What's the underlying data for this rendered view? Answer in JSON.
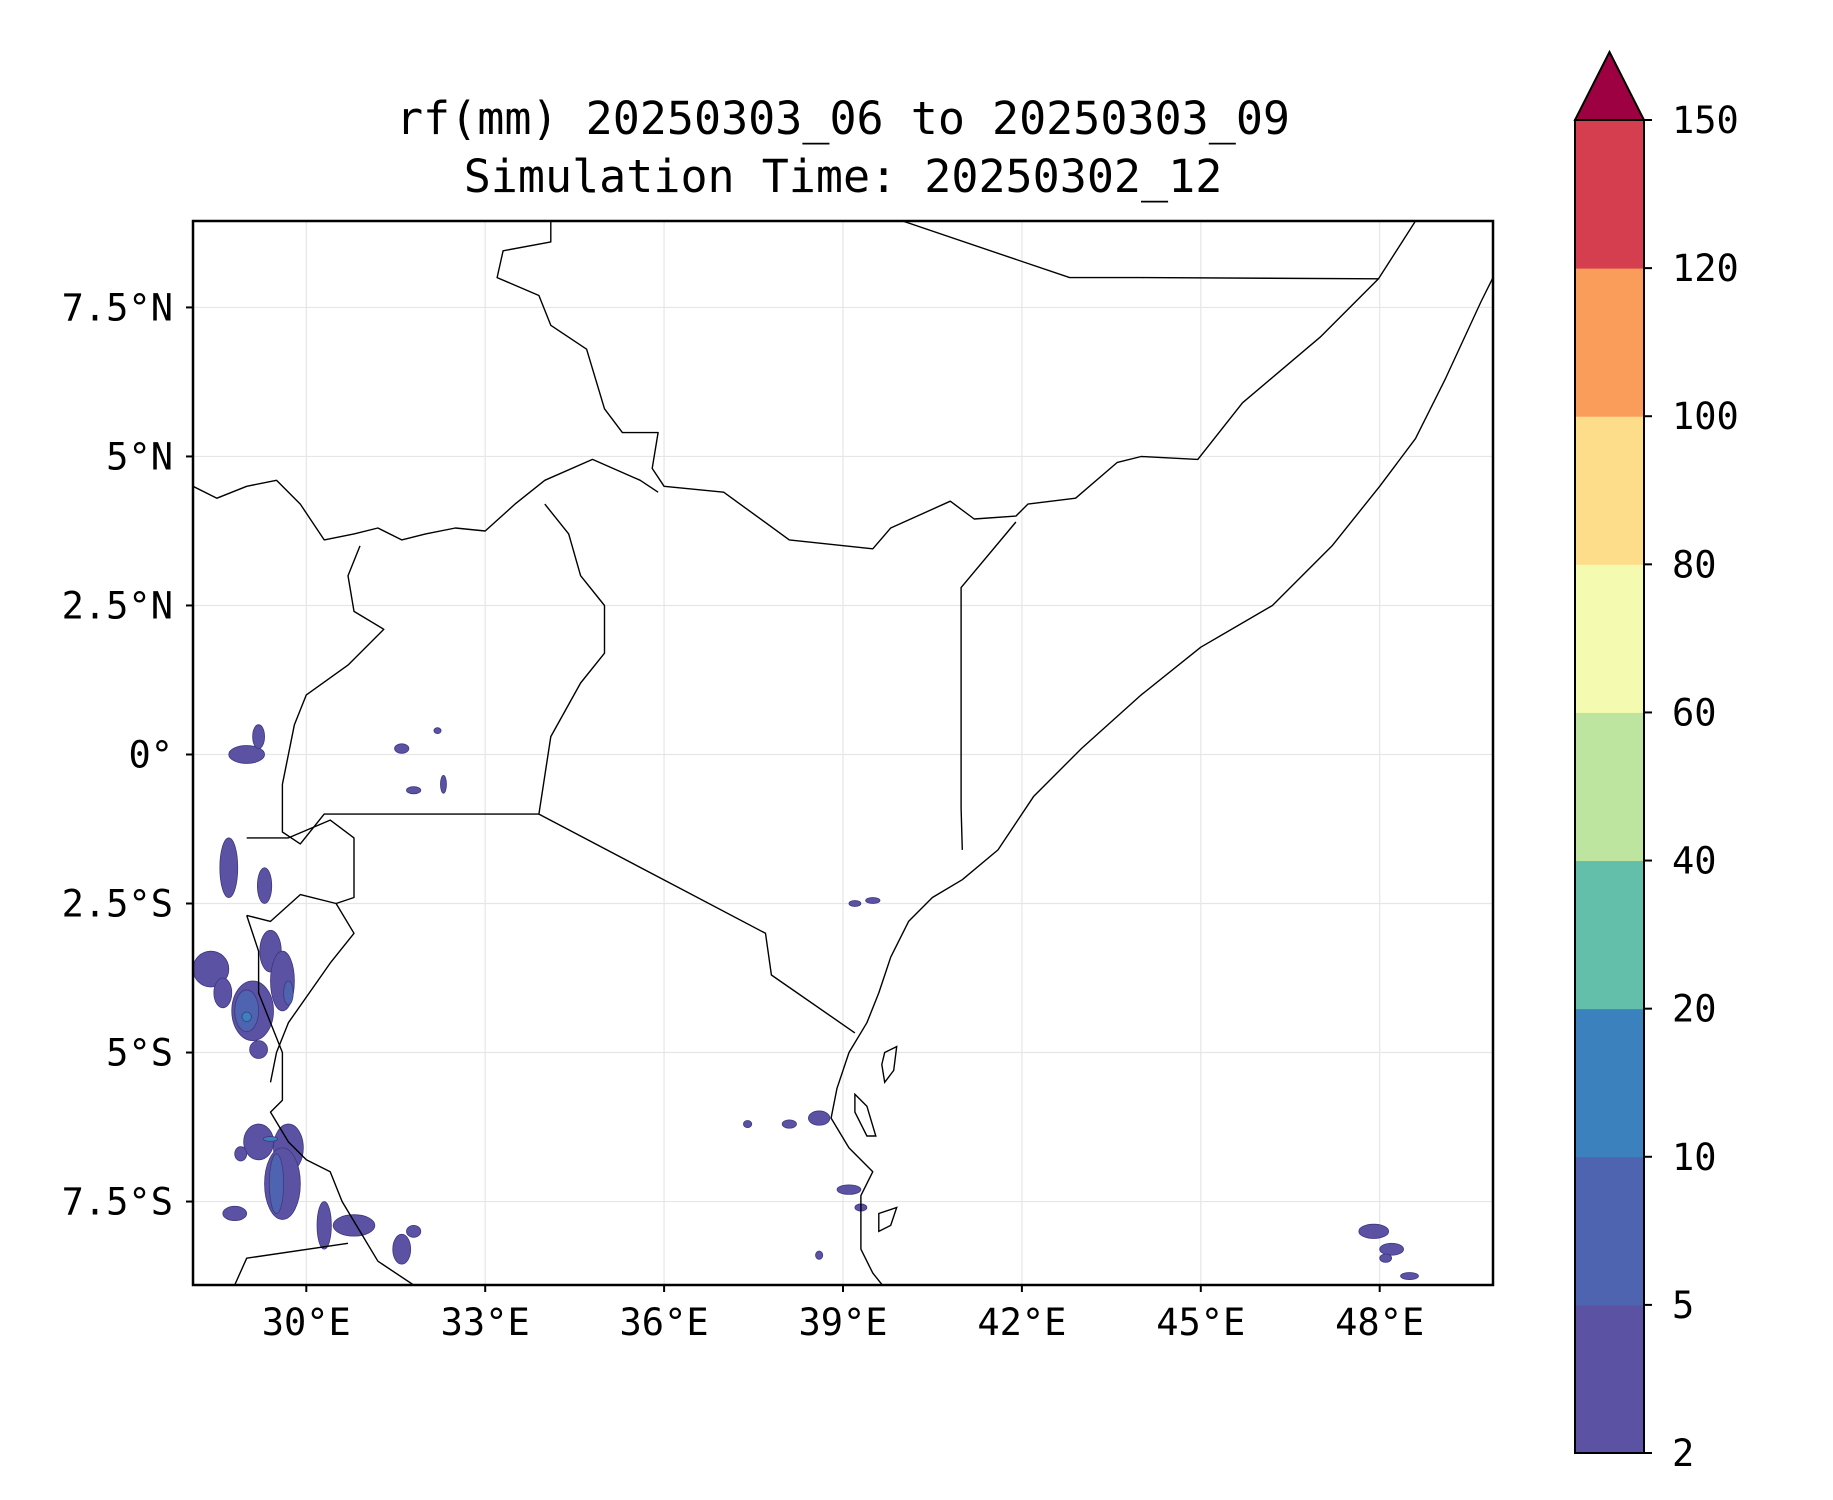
{
  "title": {
    "line1": "rf(mm) 20250303_06 to 20250303_09",
    "line2": "Simulation Time: 20250302_12"
  },
  "map": {
    "extent": {
      "lon": [
        28.1,
        49.9
      ],
      "lat": [
        -8.9,
        8.95
      ]
    },
    "x_ticks": [
      {
        "lon": 30,
        "label": "30°E"
      },
      {
        "lon": 33,
        "label": "33°E"
      },
      {
        "lon": 36,
        "label": "36°E"
      },
      {
        "lon": 39,
        "label": "39°E"
      },
      {
        "lon": 42,
        "label": "42°E"
      },
      {
        "lon": 45,
        "label": "45°E"
      },
      {
        "lon": 48,
        "label": "48°E"
      }
    ],
    "y_ticks": [
      {
        "lat": 7.5,
        "label": "7.5°N"
      },
      {
        "lat": 5,
        "label": "5°N"
      },
      {
        "lat": 2.5,
        "label": "2.5°N"
      },
      {
        "lat": 0,
        "label": "0°"
      },
      {
        "lat": -2.5,
        "label": "2.5°S"
      },
      {
        "lat": -5,
        "label": "5°S"
      },
      {
        "lat": -7.5,
        "label": "7.5°S"
      }
    ],
    "gridlines": true,
    "rain_patches": [
      {
        "lon": 29.0,
        "lat": 0.0,
        "rx": 0.3,
        "ry": 0.15,
        "level": 1
      },
      {
        "lon": 29.2,
        "lat": 0.3,
        "rx": 0.1,
        "ry": 0.2,
        "level": 1
      },
      {
        "lon": 28.7,
        "lat": -1.9,
        "rx": 0.15,
        "ry": 0.5,
        "level": 1
      },
      {
        "lon": 29.3,
        "lat": -2.2,
        "rx": 0.12,
        "ry": 0.3,
        "level": 1
      },
      {
        "lon": 29.4,
        "lat": -3.3,
        "rx": 0.18,
        "ry": 0.35,
        "level": 1
      },
      {
        "lon": 29.6,
        "lat": -3.8,
        "rx": 0.2,
        "ry": 0.5,
        "level": 1
      },
      {
        "lon": 29.7,
        "lat": -4.0,
        "rx": 0.08,
        "ry": 0.2,
        "level": 2
      },
      {
        "lon": 28.4,
        "lat": -3.6,
        "rx": 0.3,
        "ry": 0.3,
        "level": 1
      },
      {
        "lon": 28.6,
        "lat": -4.0,
        "rx": 0.15,
        "ry": 0.25,
        "level": 1
      },
      {
        "lon": 29.1,
        "lat": -4.3,
        "rx": 0.35,
        "ry": 0.5,
        "level": 1
      },
      {
        "lon": 29.0,
        "lat": -4.3,
        "rx": 0.2,
        "ry": 0.35,
        "level": 2
      },
      {
        "lon": 29.0,
        "lat": -4.4,
        "rx": 0.08,
        "ry": 0.08,
        "level": 3
      },
      {
        "lon": 29.2,
        "lat": -4.95,
        "rx": 0.15,
        "ry": 0.15,
        "level": 1
      },
      {
        "lon": 29.2,
        "lat": -6.5,
        "rx": 0.25,
        "ry": 0.3,
        "level": 1
      },
      {
        "lon": 29.7,
        "lat": -6.6,
        "rx": 0.25,
        "ry": 0.4,
        "level": 1
      },
      {
        "lon": 29.6,
        "lat": -7.2,
        "rx": 0.3,
        "ry": 0.6,
        "level": 1
      },
      {
        "lon": 29.5,
        "lat": -7.2,
        "rx": 0.12,
        "ry": 0.5,
        "level": 2
      },
      {
        "lon": 29.4,
        "lat": -6.45,
        "rx": 0.12,
        "ry": 0.04,
        "level": 3
      },
      {
        "lon": 28.9,
        "lat": -6.7,
        "rx": 0.1,
        "ry": 0.12,
        "level": 1
      },
      {
        "lon": 28.8,
        "lat": -7.7,
        "rx": 0.2,
        "ry": 0.12,
        "level": 1
      },
      {
        "lon": 30.3,
        "lat": -7.9,
        "rx": 0.12,
        "ry": 0.4,
        "level": 1
      },
      {
        "lon": 30.8,
        "lat": -7.9,
        "rx": 0.35,
        "ry": 0.18,
        "level": 1
      },
      {
        "lon": 31.6,
        "lat": -8.3,
        "rx": 0.15,
        "ry": 0.25,
        "level": 1
      },
      {
        "lon": 31.8,
        "lat": -8.0,
        "rx": 0.12,
        "ry": 0.1,
        "level": 1
      },
      {
        "lon": 31.6,
        "lat": 0.1,
        "rx": 0.12,
        "ry": 0.08,
        "level": 1
      },
      {
        "lon": 31.8,
        "lat": -0.6,
        "rx": 0.12,
        "ry": 0.06,
        "level": 1
      },
      {
        "lon": 32.3,
        "lat": -0.5,
        "rx": 0.05,
        "ry": 0.15,
        "level": 1
      },
      {
        "lon": 32.2,
        "lat": 0.4,
        "rx": 0.06,
        "ry": 0.05,
        "level": 1
      },
      {
        "lon": 39.2,
        "lat": -2.5,
        "rx": 0.1,
        "ry": 0.05,
        "level": 1
      },
      {
        "lon": 39.5,
        "lat": -2.45,
        "rx": 0.12,
        "ry": 0.05,
        "level": 1
      },
      {
        "lon": 37.4,
        "lat": -6.2,
        "rx": 0.07,
        "ry": 0.06,
        "level": 1
      },
      {
        "lon": 38.1,
        "lat": -6.2,
        "rx": 0.12,
        "ry": 0.07,
        "level": 1
      },
      {
        "lon": 38.6,
        "lat": -6.1,
        "rx": 0.18,
        "ry": 0.12,
        "level": 1
      },
      {
        "lon": 39.1,
        "lat": -7.3,
        "rx": 0.2,
        "ry": 0.08,
        "level": 1
      },
      {
        "lon": 39.3,
        "lat": -7.6,
        "rx": 0.1,
        "ry": 0.06,
        "level": 1
      },
      {
        "lon": 38.6,
        "lat": -8.4,
        "rx": 0.06,
        "ry": 0.07,
        "level": 1
      },
      {
        "lon": 47.9,
        "lat": -8.0,
        "rx": 0.25,
        "ry": 0.12,
        "level": 1
      },
      {
        "lon": 48.2,
        "lat": -8.3,
        "rx": 0.2,
        "ry": 0.1,
        "level": 1
      },
      {
        "lon": 48.1,
        "lat": -8.45,
        "rx": 0.1,
        "ry": 0.07,
        "level": 1
      },
      {
        "lon": 48.5,
        "lat": -8.75,
        "rx": 0.15,
        "ry": 0.06,
        "level": 1
      }
    ],
    "borders": [
      [
        [
          34.1,
          8.95
        ],
        [
          34.1,
          8.6
        ],
        [
          33.3,
          8.45
        ],
        [
          33.2,
          8.0
        ],
        [
          33.9,
          7.7
        ],
        [
          34.1,
          7.2
        ],
        [
          34.7,
          6.8
        ],
        [
          35.0,
          5.8
        ],
        [
          35.3,
          5.4
        ],
        [
          35.9,
          5.4
        ],
        [
          35.8,
          4.8
        ],
        [
          36.0,
          4.5
        ],
        [
          37.0,
          4.4
        ],
        [
          38.1,
          3.6
        ],
        [
          39.5,
          3.45
        ],
        [
          39.8,
          3.8
        ],
        [
          40.8,
          4.25
        ],
        [
          41.2,
          3.95
        ],
        [
          41.9,
          4.0
        ],
        [
          42.1,
          4.2
        ],
        [
          42.9,
          4.3
        ],
        [
          43.6,
          4.9
        ],
        [
          44.0,
          5.0
        ],
        [
          44.95,
          4.95
        ],
        [
          45.7,
          5.9
        ],
        [
          47.0,
          7.0
        ],
        [
          47.98,
          7.98
        ],
        [
          48.6,
          8.95
        ]
      ],
      [
        [
          40.0,
          8.95
        ],
        [
          42.8,
          8.0
        ],
        [
          44.0,
          8.0
        ],
        [
          47.98,
          7.98
        ]
      ],
      [
        [
          28.1,
          4.5
        ],
        [
          28.5,
          4.3
        ],
        [
          29.0,
          4.5
        ],
        [
          29.5,
          4.6
        ],
        [
          29.9,
          4.2
        ],
        [
          30.3,
          3.6
        ],
        [
          30.8,
          3.7
        ],
        [
          31.2,
          3.8
        ],
        [
          31.6,
          3.6
        ],
        [
          32.0,
          3.7
        ],
        [
          32.5,
          3.8
        ],
        [
          33.0,
          3.75
        ],
        [
          33.5,
          4.2
        ],
        [
          34.0,
          4.6
        ],
        [
          34.8,
          4.95
        ],
        [
          35.6,
          4.6
        ],
        [
          35.9,
          4.4
        ]
      ],
      [
        [
          30.9,
          3.5
        ],
        [
          30.7,
          3.0
        ],
        [
          30.8,
          2.4
        ],
        [
          31.3,
          2.1
        ],
        [
          30.7,
          1.5
        ],
        [
          30.0,
          1.0
        ],
        [
          29.8,
          0.5
        ],
        [
          29.7,
          0.0
        ],
        [
          29.6,
          -0.5
        ],
        [
          29.6,
          -1.3
        ],
        [
          29.9,
          -1.5
        ],
        [
          30.3,
          -1.0
        ],
        [
          30.8,
          -1.0
        ],
        [
          33.9,
          -1.0
        ]
      ],
      [
        [
          34.0,
          4.2
        ],
        [
          34.4,
          3.7
        ],
        [
          34.6,
          3.0
        ],
        [
          35.0,
          2.5
        ],
        [
          35.0,
          1.7
        ],
        [
          34.6,
          1.2
        ],
        [
          34.1,
          0.3
        ],
        [
          33.9,
          -1.0
        ],
        [
          37.7,
          -3.0
        ],
        [
          37.8,
          -3.7
        ],
        [
          39.2,
          -4.67
        ]
      ],
      [
        [
          41.0,
          -1.6
        ],
        [
          40.98,
          -0.9
        ],
        [
          40.98,
          2.8
        ],
        [
          41.9,
          3.9
        ]
      ],
      [
        [
          29.0,
          -1.4
        ],
        [
          29.7,
          -1.4
        ],
        [
          30.4,
          -1.1
        ],
        [
          30.8,
          -1.4
        ],
        [
          30.8,
          -2.4
        ],
        [
          30.5,
          -2.5
        ],
        [
          29.9,
          -2.35
        ],
        [
          29.4,
          -2.8
        ],
        [
          29.0,
          -2.7
        ]
      ],
      [
        [
          30.5,
          -2.5
        ],
        [
          30.8,
          -3.0
        ],
        [
          30.4,
          -3.5
        ],
        [
          29.7,
          -4.5
        ],
        [
          29.5,
          -5.0
        ],
        [
          29.4,
          -5.5
        ]
      ],
      [
        [
          29.0,
          -2.7
        ],
        [
          29.2,
          -3.3
        ],
        [
          29.2,
          -4.0
        ],
        [
          29.4,
          -4.5
        ],
        [
          29.6,
          -5.0
        ],
        [
          29.6,
          -5.8
        ],
        [
          29.4,
          -6.0
        ],
        [
          29.7,
          -6.5
        ],
        [
          30.0,
          -6.8
        ],
        [
          30.4,
          -7.0
        ],
        [
          30.6,
          -7.5
        ],
        [
          30.9,
          -8.0
        ],
        [
          31.2,
          -8.5
        ],
        [
          31.8,
          -8.9
        ]
      ],
      [
        [
          28.8,
          -8.9
        ],
        [
          29.0,
          -8.45
        ],
        [
          30.7,
          -8.2
        ]
      ]
    ],
    "coastline": [
      [
        49.9,
        8.0
      ],
      [
        49.7,
        7.6
      ],
      [
        49.1,
        6.3
      ],
      [
        48.6,
        5.3
      ],
      [
        48.0,
        4.5
      ],
      [
        47.2,
        3.5
      ],
      [
        46.2,
        2.5
      ],
      [
        45.0,
        1.8
      ],
      [
        44.0,
        1.0
      ],
      [
        43.0,
        0.1
      ],
      [
        42.2,
        -0.7
      ],
      [
        41.6,
        -1.6
      ],
      [
        41.0,
        -2.1
      ],
      [
        40.5,
        -2.4
      ],
      [
        40.1,
        -2.8
      ],
      [
        39.8,
        -3.4
      ],
      [
        39.6,
        -4.0
      ],
      [
        39.4,
        -4.5
      ],
      [
        39.1,
        -5.0
      ],
      [
        38.9,
        -5.6
      ],
      [
        38.8,
        -6.1
      ],
      [
        39.1,
        -6.6
      ],
      [
        39.5,
        -7.0
      ],
      [
        39.3,
        -7.4
      ],
      [
        39.3,
        -7.9
      ],
      [
        39.3,
        -8.3
      ],
      [
        39.5,
        -8.7
      ],
      [
        39.7,
        -8.95
      ]
    ],
    "islands": [
      [
        [
          39.7,
          -5.0
        ],
        [
          39.9,
          -4.9
        ],
        [
          39.85,
          -5.3
        ],
        [
          39.7,
          -5.5
        ],
        [
          39.65,
          -5.2
        ]
      ],
      [
        [
          39.2,
          -5.7
        ],
        [
          39.4,
          -5.9
        ],
        [
          39.55,
          -6.4
        ],
        [
          39.4,
          -6.4
        ],
        [
          39.2,
          -6.0
        ]
      ],
      [
        [
          39.6,
          -7.7
        ],
        [
          39.9,
          -7.6
        ],
        [
          39.8,
          -7.9
        ],
        [
          39.6,
          -8.0
        ]
      ]
    ]
  },
  "colorbar": {
    "levels": [
      2,
      5,
      10,
      20,
      40,
      60,
      80,
      100,
      120,
      150
    ],
    "labels": [
      "2",
      "5",
      "10",
      "20",
      "40",
      "60",
      "80",
      "100",
      "120",
      "150"
    ],
    "colors": [
      "#5b52a3",
      "#4e64b0",
      "#3a81bd",
      "#63bfa9",
      "#bee5a0",
      "#f4faaf",
      "#fddc8a",
      "#fa9c5a",
      "#d53e4f"
    ],
    "extend_color": "#9e0142"
  }
}
